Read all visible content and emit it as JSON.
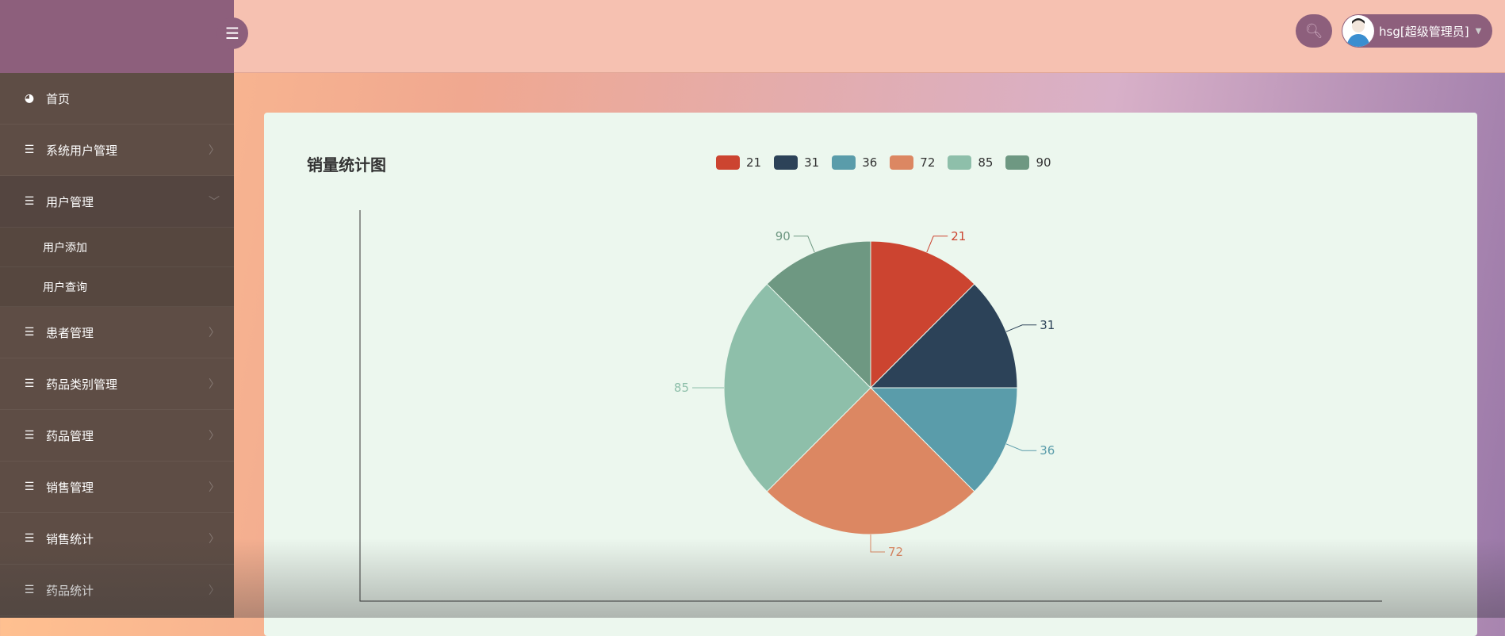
{
  "sidebar": {
    "toggle_icon": "menu-icon",
    "items": [
      {
        "label": "首页",
        "icon": "dashboard-icon"
      },
      {
        "label": "系统用户管理",
        "icon": "list-icon"
      },
      {
        "label": "用户管理",
        "icon": "list-icon",
        "open": true,
        "children": [
          {
            "label": "用户添加"
          },
          {
            "label": "用户查询"
          }
        ]
      },
      {
        "label": "患者管理",
        "icon": "list-icon"
      },
      {
        "label": "药品类别管理",
        "icon": "list-icon"
      },
      {
        "label": "药品管理",
        "icon": "list-icon"
      },
      {
        "label": "销售管理",
        "icon": "list-icon"
      },
      {
        "label": "销售统计",
        "icon": "list-icon"
      },
      {
        "label": "药品统计",
        "icon": "list-icon"
      }
    ]
  },
  "header": {
    "user_label": "hsg[超级管理员]"
  },
  "colors": {
    "sidebar": "#5e4d45",
    "brand": "#8d5f7c",
    "header": "#f6c1b1"
  },
  "chart_data": {
    "type": "pie",
    "title": "销量统计图",
    "legend_position": "top",
    "categories": [
      "21",
      "31",
      "36",
      "72",
      "85",
      "90"
    ],
    "values": [
      1,
      1,
      1,
      2,
      2,
      1
    ],
    "colors": [
      "#cc4430",
      "#2c4258",
      "#5a9caa",
      "#dc8762",
      "#8ebfaa",
      "#6e9882"
    ]
  }
}
